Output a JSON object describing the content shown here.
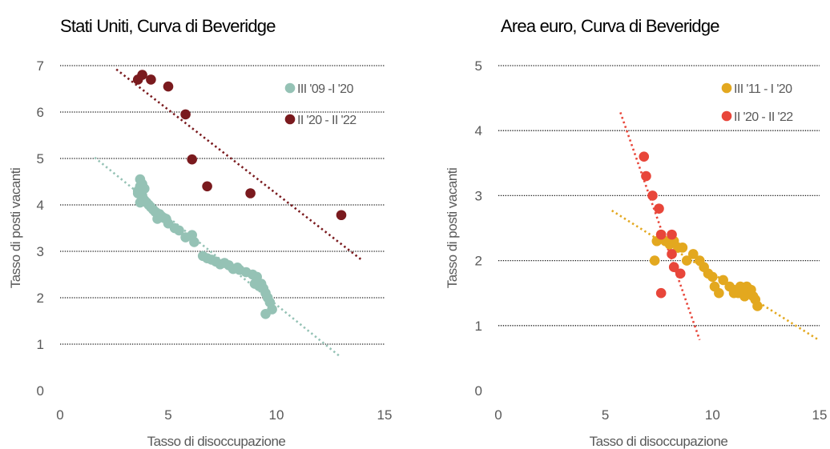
{
  "chart_data": [
    {
      "type": "scatter",
      "title": "Stati Uniti, Curva di Beveridge",
      "xlabel": "Tasso di disoccupazione",
      "ylabel": "Tasso di posti vacanti",
      "xlim": [
        0,
        15
      ],
      "ylim": [
        0,
        7
      ],
      "xticks": [
        0,
        5,
        10,
        15
      ],
      "yticks": [
        0,
        1,
        2,
        3,
        4,
        5,
        6,
        7
      ],
      "grid": "horizontal dotted",
      "legend_position": "top-right",
      "series": [
        {
          "name": "III '09 -I '20",
          "color": "#95c2b5",
          "points": [
            [
              9.8,
              1.75
            ],
            [
              9.7,
              1.9
            ],
            [
              9.6,
              2.0
            ],
            [
              9.5,
              1.65
            ],
            [
              9.5,
              2.1
            ],
            [
              9.4,
              2.2
            ],
            [
              9.3,
              2.3
            ],
            [
              9.2,
              2.25
            ],
            [
              9.1,
              2.45
            ],
            [
              9.0,
              2.3
            ],
            [
              8.9,
              2.5
            ],
            [
              8.6,
              2.55
            ],
            [
              8.3,
              2.6
            ],
            [
              8.2,
              2.65
            ],
            [
              8.0,
              2.62
            ],
            [
              7.8,
              2.7
            ],
            [
              7.6,
              2.75
            ],
            [
              7.4,
              2.72
            ],
            [
              7.2,
              2.78
            ],
            [
              7.0,
              2.82
            ],
            [
              6.8,
              2.85
            ],
            [
              6.6,
              2.9
            ],
            [
              6.2,
              3.2
            ],
            [
              6.1,
              3.35
            ],
            [
              5.8,
              3.3
            ],
            [
              5.5,
              3.45
            ],
            [
              5.3,
              3.5
            ],
            [
              5.0,
              3.6
            ],
            [
              4.9,
              3.7
            ],
            [
              4.8,
              3.72
            ],
            [
              4.7,
              3.75
            ],
            [
              4.6,
              3.8
            ],
            [
              4.5,
              3.7
            ],
            [
              4.4,
              3.85
            ],
            [
              4.3,
              3.9
            ],
            [
              4.2,
              3.95
            ],
            [
              4.1,
              4.0
            ],
            [
              4.0,
              4.05
            ],
            [
              3.9,
              4.1
            ],
            [
              3.8,
              4.15
            ],
            [
              3.7,
              4.05
            ],
            [
              3.8,
              4.2
            ],
            [
              3.6,
              4.3
            ],
            [
              3.7,
              4.4
            ],
            [
              3.8,
              4.45
            ],
            [
              3.7,
              4.55
            ],
            [
              3.6,
              4.25
            ],
            [
              3.9,
              4.35
            ]
          ],
          "trendline": [
            [
              1.6,
              5.02
            ],
            [
              12.9,
              0.75
            ]
          ]
        },
        {
          "name": "II '20 - II '22",
          "color": "#7a1a1e",
          "points": [
            [
              3.6,
              6.7
            ],
            [
              3.8,
              6.8
            ],
            [
              4.2,
              6.7
            ],
            [
              5.0,
              6.55
            ],
            [
              5.8,
              5.95
            ],
            [
              6.1,
              4.98
            ],
            [
              6.8,
              4.4
            ],
            [
              8.8,
              4.25
            ],
            [
              13.0,
              3.78
            ]
          ],
          "trendline": [
            [
              2.6,
              6.92
            ],
            [
              13.9,
              2.83
            ]
          ]
        }
      ]
    },
    {
      "type": "scatter",
      "title": "Area euro, Curva di Beveridge",
      "xlabel": "Tasso di disoccupazione",
      "ylabel": "Tasso di posti vacanti",
      "xlim": [
        0,
        15
      ],
      "ylim": [
        0,
        5
      ],
      "xticks": [
        0,
        5,
        10,
        15
      ],
      "yticks": [
        0,
        1,
        2,
        3,
        4,
        5
      ],
      "grid": "horizontal dotted",
      "legend_position": "top-right",
      "series": [
        {
          "name": "III '11 - I '20",
          "color": "#e3a81f",
          "points": [
            [
              12.1,
              1.3
            ],
            [
              12.0,
              1.4
            ],
            [
              11.9,
              1.45
            ],
            [
              11.8,
              1.55
            ],
            [
              11.7,
              1.5
            ],
            [
              11.6,
              1.6
            ],
            [
              11.5,
              1.45
            ],
            [
              11.4,
              1.55
            ],
            [
              11.3,
              1.6
            ],
            [
              11.2,
              1.5
            ],
            [
              11.0,
              1.55
            ],
            [
              10.8,
              1.6
            ],
            [
              10.5,
              1.7
            ],
            [
              10.3,
              1.5
            ],
            [
              10.0,
              1.75
            ],
            [
              9.8,
              1.8
            ],
            [
              9.6,
              1.9
            ],
            [
              9.4,
              2.0
            ],
            [
              9.1,
              2.1
            ],
            [
              8.8,
              2.0
            ],
            [
              8.6,
              2.2
            ],
            [
              8.4,
              2.2
            ],
            [
              8.2,
              2.3
            ],
            [
              8.0,
              2.25
            ],
            [
              7.8,
              2.3
            ],
            [
              7.6,
              2.4
            ],
            [
              7.4,
              2.3
            ],
            [
              7.3,
              2.0
            ],
            [
              10.1,
              1.6
            ],
            [
              11.0,
              1.5
            ]
          ],
          "trendline": [
            [
              5.3,
              2.77
            ],
            [
              15.0,
              0.77
            ]
          ]
        },
        {
          "name": "II '20 - II '22",
          "color": "#e8463a",
          "points": [
            [
              6.8,
              3.6
            ],
            [
              6.9,
              3.3
            ],
            [
              7.2,
              3.0
            ],
            [
              7.5,
              2.8
            ],
            [
              8.1,
              2.4
            ],
            [
              7.6,
              2.4
            ],
            [
              8.1,
              2.1
            ],
            [
              8.2,
              1.9
            ],
            [
              8.5,
              1.8
            ],
            [
              7.6,
              1.5
            ]
          ],
          "trendline": [
            [
              5.7,
              4.28
            ],
            [
              9.4,
              0.78
            ]
          ]
        }
      ]
    }
  ]
}
